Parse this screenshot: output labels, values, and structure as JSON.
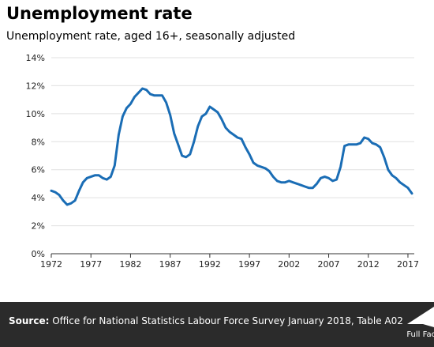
{
  "header": {
    "title": "Unemployment rate",
    "subtitle": "Unemployment rate, aged 16+, seasonally adjusted"
  },
  "footer": {
    "source_label": "Source:",
    "source_text": "Office for National Statistics Labour Force Survey January 2018, Table A02",
    "logo_text": "Full Fact"
  },
  "colors": {
    "line": "#1a6db5",
    "grid": "#e0e0e0",
    "axis": "#333333",
    "footer_bg": "#2b2b2b"
  },
  "chart_data": {
    "type": "line",
    "title": "Unemployment rate",
    "subtitle": "Unemployment rate, aged 16+, seasonally adjusted",
    "xlabel": "",
    "ylabel": "",
    "xlim": [
      1972,
      2017.8
    ],
    "ylim": [
      0,
      14
    ],
    "x_ticks": [
      1972,
      1977,
      1982,
      1987,
      1992,
      1997,
      2002,
      2007,
      2012,
      2017
    ],
    "x_tick_labels": [
      "1972",
      "1977",
      "1982",
      "1987",
      "1992",
      "1997",
      "2002",
      "2007",
      "2012",
      "2017"
    ],
    "y_ticks": [
      0,
      2,
      4,
      6,
      8,
      10,
      12,
      14
    ],
    "y_tick_labels": [
      "0%",
      "2%",
      "4%",
      "6%",
      "8%",
      "10%",
      "12%",
      "14%"
    ],
    "grid": "horizontal",
    "legend": "none",
    "series": [
      {
        "x": [
          1972.0,
          1972.5,
          1973.0,
          1973.5,
          1974.0,
          1974.5,
          1975.0,
          1975.5,
          1976.0,
          1976.5,
          1977.0,
          1977.5,
          1978.0,
          1978.5,
          1979.0,
          1979.5,
          1980.0,
          1980.5,
          1981.0,
          1981.5,
          1982.0,
          1982.5,
          1983.0,
          1983.5,
          1984.0,
          1984.5,
          1985.0,
          1985.5,
          1986.0,
          1986.5,
          1987.0,
          1987.5,
          1988.0,
          1988.5,
          1989.0,
          1989.5,
          1990.0,
          1990.5,
          1991.0,
          1991.5,
          1992.0,
          1992.5,
          1993.0,
          1993.5,
          1994.0,
          1994.5,
          1995.0,
          1995.5,
          1996.0,
          1996.5,
          1997.0,
          1997.5,
          1998.0,
          1998.5,
          1999.0,
          1999.5,
          2000.0,
          2000.5,
          2001.0,
          2001.5,
          2002.0,
          2002.5,
          2003.0,
          2003.5,
          2004.0,
          2004.5,
          2005.0,
          2005.5,
          2006.0,
          2006.5,
          2007.0,
          2007.5,
          2008.0,
          2008.5,
          2009.0,
          2009.5,
          2010.0,
          2010.5,
          2011.0,
          2011.5,
          2012.0,
          2012.5,
          2013.0,
          2013.5,
          2014.0,
          2014.5,
          2015.0,
          2015.5,
          2016.0,
          2016.5,
          2017.0,
          2017.5
        ],
        "values": [
          4.5,
          4.4,
          4.2,
          3.8,
          3.5,
          3.6,
          3.8,
          4.5,
          5.1,
          5.4,
          5.5,
          5.6,
          5.6,
          5.4,
          5.3,
          5.5,
          6.3,
          8.5,
          9.8,
          10.4,
          10.7,
          11.2,
          11.5,
          11.8,
          11.7,
          11.4,
          11.3,
          11.3,
          11.3,
          10.8,
          9.9,
          8.6,
          7.8,
          7.0,
          6.9,
          7.1,
          8.0,
          9.1,
          9.8,
          10.0,
          10.5,
          10.3,
          10.1,
          9.6,
          9.0,
          8.7,
          8.5,
          8.3,
          8.2,
          7.6,
          7.1,
          6.5,
          6.3,
          6.2,
          6.1,
          5.9,
          5.5,
          5.2,
          5.1,
          5.1,
          5.2,
          5.1,
          5.0,
          4.9,
          4.8,
          4.7,
          4.7,
          5.0,
          5.4,
          5.5,
          5.4,
          5.2,
          5.3,
          6.2,
          7.7,
          7.8,
          7.8,
          7.8,
          7.9,
          8.3,
          8.2,
          7.9,
          7.8,
          7.6,
          6.9,
          6.0,
          5.6,
          5.4,
          5.1,
          4.9,
          4.7,
          4.3
        ]
      }
    ]
  }
}
